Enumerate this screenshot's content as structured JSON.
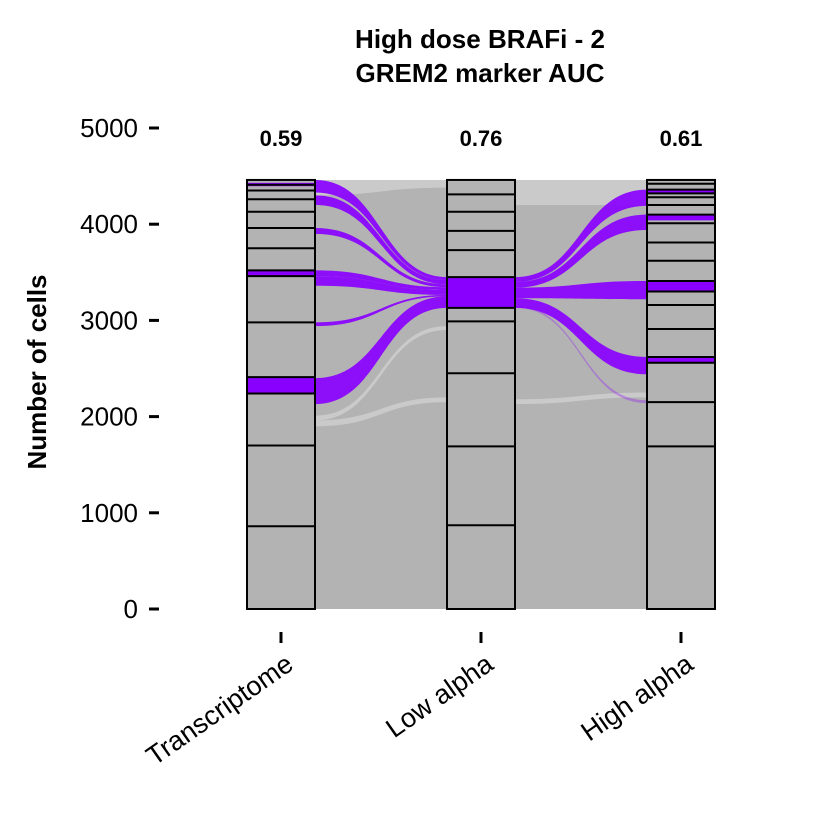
{
  "chart_data": {
    "type": "alluvial",
    "title": "High dose BRAFi - 2",
    "subtitle": "GREM2 marker AUC",
    "ylabel": "Number of cells",
    "xlabel": "",
    "ylim": [
      0,
      5000
    ],
    "yticks": [
      0,
      1000,
      2000,
      3000,
      4000,
      5000
    ],
    "total_cells": 4460,
    "grid": false,
    "colors": {
      "background_flow": "#b3b3b3",
      "marker_flow": "#8a00ff",
      "stratum_fill": "#b3b3b3",
      "stratum_border": "#000000"
    },
    "axes": [
      {
        "name": "Transcriptome",
        "auc": "0.59",
        "boundaries": [
          0,
          860,
          1700,
          2240,
          2410,
          2980,
          3460,
          3520,
          3750,
          3960,
          4130,
          4260,
          4350,
          4410,
          4460
        ],
        "marker_strata": [
          [
            2240,
            2410
          ],
          [
            3460,
            3520
          ],
          [
            4395,
            4430
          ]
        ]
      },
      {
        "name": "Low alpha",
        "auc": "0.76",
        "boundaries": [
          0,
          870,
          1690,
          2450,
          2990,
          3130,
          3450,
          3730,
          3930,
          4130,
          4310,
          4460
        ],
        "marker_strata": [
          [
            3130,
            3450
          ]
        ]
      },
      {
        "name": "High alpha",
        "auc": "0.61",
        "boundaries": [
          0,
          1690,
          2150,
          2560,
          2620,
          2910,
          3160,
          3300,
          3410,
          3620,
          3810,
          4010,
          4100,
          4200,
          4280,
          4320,
          4360,
          4420,
          4460
        ],
        "marker_strata": [
          [
            2560,
            2620
          ],
          [
            3300,
            3410
          ],
          [
            4040,
            4100
          ],
          [
            4320,
            4360
          ]
        ]
      }
    ],
    "marker_flows_left": [
      {
        "from": [
          2130,
          2400
        ],
        "to": [
          3130,
          3250
        ]
      },
      {
        "from": [
          2940,
          2980
        ],
        "to": [
          3250,
          3265
        ]
      },
      {
        "from": [
          3360,
          3460
        ],
        "to": [
          3265,
          3315
        ]
      },
      {
        "from": [
          3460,
          3520
        ],
        "to": [
          3315,
          3345
        ]
      },
      {
        "from": [
          3900,
          3960
        ],
        "to": [
          3345,
          3375
        ]
      },
      {
        "from": [
          4200,
          4300
        ],
        "to": [
          3375,
          3420
        ]
      },
      {
        "from": [
          4330,
          4460
        ],
        "to": [
          3420,
          3450
        ]
      }
    ],
    "marker_flows_right": [
      {
        "from": [
          3130,
          3230
        ],
        "to": [
          2440,
          2620
        ]
      },
      {
        "from": [
          3230,
          3340
        ],
        "to": [
          3220,
          3410
        ]
      },
      {
        "from": [
          3340,
          3400
        ],
        "to": [
          3940,
          4100
        ]
      },
      {
        "from": [
          3400,
          3450
        ],
        "to": [
          4190,
          4360
        ]
      }
    ]
  }
}
